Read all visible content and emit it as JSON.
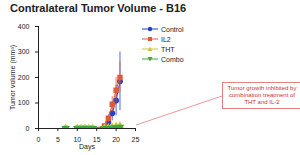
{
  "chart_data": {
    "type": "line",
    "title": "Contralateral Tumor Volume - B16",
    "x_label": "Days",
    "y_label": "Tumor volume (mm³)",
    "x": [
      7,
      10,
      11,
      12,
      13,
      14,
      17,
      18,
      19,
      20,
      21
    ],
    "series": [
      {
        "name": "Control",
        "color": "#2040d0",
        "marker": "circle",
        "line_style": "solid",
        "values": [
          0,
          0,
          0,
          0,
          0,
          0,
          5,
          25,
          60,
          110,
          185
        ],
        "error": [
          0,
          0,
          0,
          0,
          0,
          0,
          3,
          10,
          30,
          60,
          115
        ]
      },
      {
        "name": "IL2",
        "color": "#e05a3a",
        "marker": "square",
        "line_style": "solid",
        "values": [
          0,
          0,
          0,
          0,
          0,
          0,
          10,
          40,
          95,
          150,
          200
        ],
        "error": [
          0,
          0,
          0,
          0,
          0,
          0,
          5,
          15,
          30,
          50,
          60
        ]
      },
      {
        "name": "THT",
        "color": "#c8c83a",
        "marker": "triangle-up",
        "line_style": "solid",
        "values": [
          0,
          0,
          0,
          0,
          0,
          0,
          0,
          2,
          5,
          8,
          10
        ],
        "error": [
          0,
          0,
          0,
          0,
          0,
          0,
          0,
          1,
          2,
          3,
          4
        ]
      },
      {
        "name": "Combo",
        "color": "#3aaa3a",
        "marker": "triangle-down",
        "line_style": "solid",
        "values": [
          0,
          0,
          0,
          0,
          0,
          0,
          0,
          0,
          2,
          3,
          5
        ],
        "error": [
          0,
          0,
          0,
          0,
          0,
          0,
          0,
          0,
          1,
          1,
          2
        ]
      }
    ],
    "xlim": [
      0,
      25
    ],
    "xticks": [
      0,
      5,
      10,
      15,
      20,
      25
    ],
    "ylim": [
      0,
      400
    ],
    "yticks": [
      0,
      100,
      200,
      300,
      400
    ],
    "grid": false,
    "legend": "right",
    "annotation": "Tumor growth inhibited by combination treatment of THT and IL-2"
  }
}
